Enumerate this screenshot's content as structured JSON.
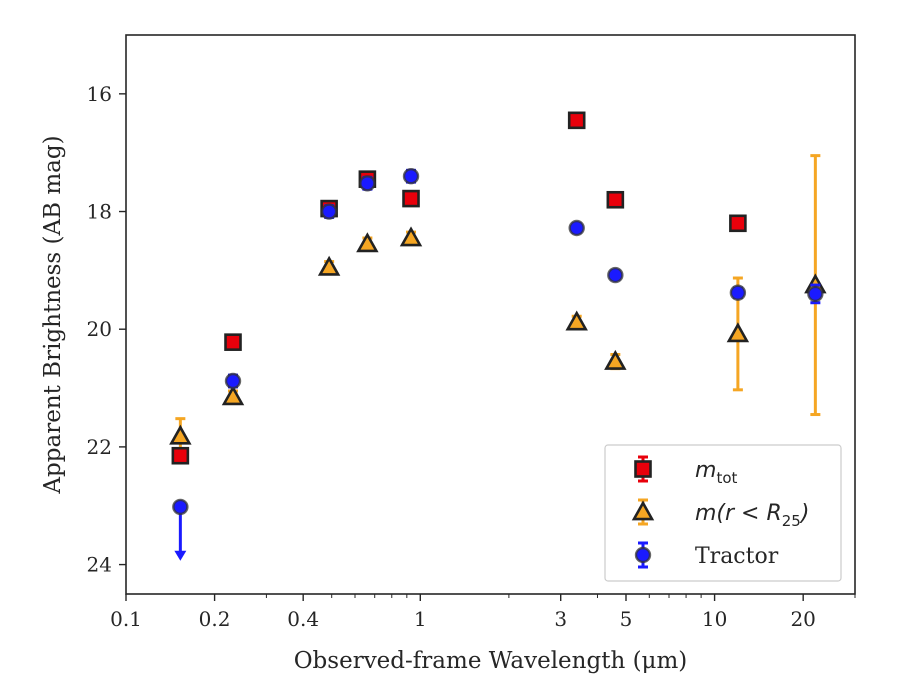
{
  "chart_data": {
    "type": "scatter",
    "xlabel": "Observed-frame Wavelength (μm)",
    "ylabel": "Apparent Brightness (AB mag)",
    "x_scale": "log",
    "xlim": [
      0.1,
      30
    ],
    "ylim": [
      24.5,
      15
    ],
    "y_inverted": true,
    "x_ticks": [
      {
        "value": 0.1,
        "label": "0.1"
      },
      {
        "value": 0.2,
        "label": "0.2"
      },
      {
        "value": 0.4,
        "label": "0.4"
      },
      {
        "value": 1,
        "label": "1"
      },
      {
        "value": 3,
        "label": "3"
      },
      {
        "value": 5,
        "label": "5"
      },
      {
        "value": 10,
        "label": "10"
      },
      {
        "value": 20,
        "label": "20"
      }
    ],
    "y_ticks": [
      {
        "value": 16,
        "label": "16"
      },
      {
        "value": 18,
        "label": "18"
      },
      {
        "value": 20,
        "label": "20"
      },
      {
        "value": 22,
        "label": "22"
      },
      {
        "value": 24,
        "label": "24"
      }
    ],
    "grid": false,
    "legend_position": "lower-right",
    "series": [
      {
        "name": "m_tot",
        "marker": "square",
        "color": "#e8000b",
        "edge_color": "#222222",
        "points": [
          {
            "x": 0.153,
            "y": 22.15,
            "err": 0.1
          },
          {
            "x": 0.231,
            "y": 20.22,
            "err": 0.1
          },
          {
            "x": 0.49,
            "y": 17.95,
            "err": 0.12
          },
          {
            "x": 0.661,
            "y": 17.45,
            "err": 0.1
          },
          {
            "x": 0.93,
            "y": 17.78,
            "err": 0.1
          },
          {
            "x": 3.4,
            "y": 16.45,
            "err": 0.07
          },
          {
            "x": 4.6,
            "y": 17.8,
            "err": 0.07
          },
          {
            "x": 12.0,
            "y": 18.2,
            "err": 0.07
          }
        ]
      },
      {
        "name": "m(r < R25)",
        "marker": "triangle",
        "color": "#f5a623",
        "edge_color": "#222222",
        "points": [
          {
            "x": 0.153,
            "y": 21.82,
            "err": 0.3
          },
          {
            "x": 0.231,
            "y": 21.15,
            "err": 0.1
          },
          {
            "x": 0.49,
            "y": 18.95,
            "err": 0.1
          },
          {
            "x": 0.661,
            "y": 18.55,
            "err": 0.1
          },
          {
            "x": 0.93,
            "y": 18.45,
            "err": 0.1
          },
          {
            "x": 3.4,
            "y": 19.88,
            "err": 0.1
          },
          {
            "x": 4.6,
            "y": 20.55,
            "err": 0.12
          },
          {
            "x": 12.0,
            "y": 20.08,
            "err": 0.95
          },
          {
            "x": 22.0,
            "y": 19.25,
            "err": 2.2
          }
        ]
      },
      {
        "name": "Tractor",
        "marker": "circle",
        "color": "#1a1aff",
        "edge_color": "#333333",
        "points": [
          {
            "x": 0.153,
            "y": 23.02,
            "upper_limit": true,
            "arrow_to": 23.9
          },
          {
            "x": 0.231,
            "y": 20.88,
            "err": 0.1
          },
          {
            "x": 0.49,
            "y": 18.0,
            "err": 0.1
          },
          {
            "x": 0.661,
            "y": 17.52,
            "err": 0.1
          },
          {
            "x": 0.93,
            "y": 17.4,
            "err": 0.1
          },
          {
            "x": 3.4,
            "y": 18.28,
            "err": 0.07
          },
          {
            "x": 4.6,
            "y": 19.08,
            "err": 0.07
          },
          {
            "x": 12.0,
            "y": 19.38,
            "err": 0.08
          },
          {
            "x": 22.0,
            "y": 19.4,
            "err": 0.15
          }
        ]
      }
    ],
    "legend": [
      {
        "series": "m_tot",
        "base": "m",
        "subscript": "tot"
      },
      {
        "series": "m(r < R25)",
        "base": "m(r < R",
        "subscript": "25",
        "suffix": ")"
      },
      {
        "series": "Tractor",
        "text": "Tractor"
      }
    ]
  }
}
